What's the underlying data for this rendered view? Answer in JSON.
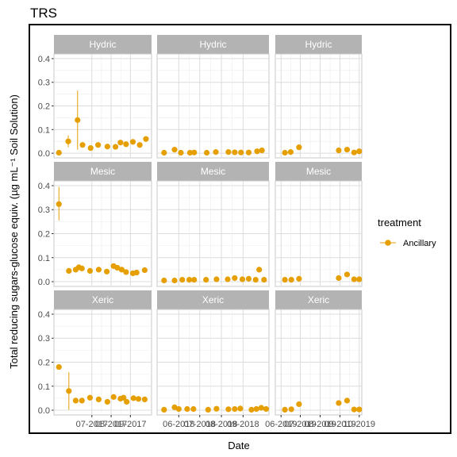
{
  "chart_data": {
    "type": "scatter",
    "title": "TRS",
    "xlabel": "Date",
    "ylabel": "Total reducing sugars-glucose equiv. (µg mL⁻¹ Soil Solution)",
    "ylim": [
      0,
      0.4
    ],
    "yticks": [
      "0.0",
      "0.1",
      "0.2",
      "0.3",
      "0.4"
    ],
    "ytick_values": [
      0,
      0.1,
      0.2,
      0.3,
      0.4
    ],
    "rows": [
      "Hydric",
      "Mesic",
      "Xeric"
    ],
    "legend": {
      "title": "treatment",
      "entries": [
        "Ancillary"
      ],
      "placement": "right"
    },
    "grid": true,
    "color": "#E69F00",
    "columns": [
      {
        "xlim": [
          "2017-05-01",
          "2017-10-05"
        ],
        "xticks": [
          "07-2017",
          "08-2017",
          "09-2017"
        ],
        "xtick_dates": [
          "2017-07-01",
          "2017-08-01",
          "2017-09-01"
        ],
        "panels": [
          {
            "row": "Hydric",
            "points": [
              {
                "x": "2017-05-09",
                "y": 0.002
              },
              {
                "x": "2017-05-24",
                "y": 0.05,
                "lo": 0.025,
                "hi": 0.075
              },
              {
                "x": "2017-06-08",
                "y": 0.14,
                "lo": 0.015,
                "hi": 0.265
              },
              {
                "x": "2017-06-16",
                "y": 0.035
              },
              {
                "x": "2017-06-29",
                "y": 0.022
              },
              {
                "x": "2017-07-11",
                "y": 0.035
              },
              {
                "x": "2017-07-26",
                "y": 0.028
              },
              {
                "x": "2017-08-08",
                "y": 0.027
              },
              {
                "x": "2017-08-16",
                "y": 0.045
              },
              {
                "x": "2017-08-25",
                "y": 0.038
              },
              {
                "x": "2017-09-05",
                "y": 0.048
              },
              {
                "x": "2017-09-16",
                "y": 0.035
              },
              {
                "x": "2017-09-26",
                "y": 0.06
              }
            ]
          },
          {
            "row": "Mesic",
            "points": [
              {
                "x": "2017-05-09",
                "y": 0.323,
                "lo": 0.255,
                "hi": 0.395
              },
              {
                "x": "2017-05-25",
                "y": 0.045
              },
              {
                "x": "2017-06-05",
                "y": 0.05
              },
              {
                "x": "2017-06-10",
                "y": 0.06
              },
              {
                "x": "2017-06-15",
                "y": 0.055
              },
              {
                "x": "2017-06-28",
                "y": 0.045
              },
              {
                "x": "2017-07-12",
                "y": 0.05
              },
              {
                "x": "2017-07-25",
                "y": 0.042
              },
              {
                "x": "2017-08-05",
                "y": 0.065
              },
              {
                "x": "2017-08-11",
                "y": 0.058
              },
              {
                "x": "2017-08-18",
                "y": 0.05
              },
              {
                "x": "2017-08-25",
                "y": 0.04
              },
              {
                "x": "2017-09-05",
                "y": 0.035
              },
              {
                "x": "2017-09-11",
                "y": 0.038
              },
              {
                "x": "2017-09-24",
                "y": 0.048
              }
            ]
          },
          {
            "row": "Xeric",
            "points": [
              {
                "x": "2017-05-09",
                "y": 0.18
              },
              {
                "x": "2017-05-25",
                "y": 0.08,
                "lo": 0.002,
                "hi": 0.158
              },
              {
                "x": "2017-06-05",
                "y": 0.04
              },
              {
                "x": "2017-06-15",
                "y": 0.04
              },
              {
                "x": "2017-06-28",
                "y": 0.052
              },
              {
                "x": "2017-07-12",
                "y": 0.045
              },
              {
                "x": "2017-07-26",
                "y": 0.035
              },
              {
                "x": "2017-08-05",
                "y": 0.055
              },
              {
                "x": "2017-08-16",
                "y": 0.048
              },
              {
                "x": "2017-08-21",
                "y": 0.052
              },
              {
                "x": "2017-08-26",
                "y": 0.035
              },
              {
                "x": "2017-09-06",
                "y": 0.05
              },
              {
                "x": "2017-09-14",
                "y": 0.047
              },
              {
                "x": "2017-09-24",
                "y": 0.045
              }
            ]
          }
        ]
      },
      {
        "xlim": [
          "2018-05-01",
          "2018-10-08"
        ],
        "xticks": [
          "06-2018",
          "07-2018",
          "08-2018",
          "09-2018"
        ],
        "xtick_dates": [
          "2018-06-01",
          "2018-07-01",
          "2018-08-01",
          "2018-09-01"
        ],
        "panels": [
          {
            "row": "Hydric",
            "points": [
              {
                "x": "2018-05-11",
                "y": 0.002
              },
              {
                "x": "2018-05-26",
                "y": 0.015,
                "lo": 0.003,
                "hi": 0.027
              },
              {
                "x": "2018-06-04",
                "y": 0.002
              },
              {
                "x": "2018-06-17",
                "y": 0.002
              },
              {
                "x": "2018-06-23",
                "y": 0.003
              },
              {
                "x": "2018-07-11",
                "y": 0.002
              },
              {
                "x": "2018-07-24",
                "y": 0.005
              },
              {
                "x": "2018-08-11",
                "y": 0.005
              },
              {
                "x": "2018-08-20",
                "y": 0.004
              },
              {
                "x": "2018-08-29",
                "y": 0.003
              },
              {
                "x": "2018-09-09",
                "y": 0.003
              },
              {
                "x": "2018-09-21",
                "y": 0.008
              },
              {
                "x": "2018-09-28",
                "y": 0.012
              }
            ]
          },
          {
            "row": "Mesic",
            "points": [
              {
                "x": "2018-05-11",
                "y": 0.005
              },
              {
                "x": "2018-05-26",
                "y": 0.005
              },
              {
                "x": "2018-06-06",
                "y": 0.008
              },
              {
                "x": "2018-06-16",
                "y": 0.008
              },
              {
                "x": "2018-06-23",
                "y": 0.008
              },
              {
                "x": "2018-07-10",
                "y": 0.008
              },
              {
                "x": "2018-07-25",
                "y": 0.01
              },
              {
                "x": "2018-08-10",
                "y": 0.01
              },
              {
                "x": "2018-08-20",
                "y": 0.015
              },
              {
                "x": "2018-08-31",
                "y": 0.01
              },
              {
                "x": "2018-09-09",
                "y": 0.012
              },
              {
                "x": "2018-09-19",
                "y": 0.008
              },
              {
                "x": "2018-09-24",
                "y": 0.05
              },
              {
                "x": "2018-10-01",
                "y": 0.008
              }
            ]
          },
          {
            "row": "Xeric",
            "points": [
              {
                "x": "2018-05-11",
                "y": 0.002
              },
              {
                "x": "2018-05-26",
                "y": 0.012
              },
              {
                "x": "2018-06-01",
                "y": 0.005
              },
              {
                "x": "2018-06-13",
                "y": 0.005
              },
              {
                "x": "2018-06-22",
                "y": 0.005
              },
              {
                "x": "2018-07-13",
                "y": 0.002
              },
              {
                "x": "2018-07-25",
                "y": 0.006
              },
              {
                "x": "2018-08-11",
                "y": 0.004
              },
              {
                "x": "2018-08-20",
                "y": 0.005
              },
              {
                "x": "2018-08-28",
                "y": 0.007
              },
              {
                "x": "2018-09-13",
                "y": 0.002
              },
              {
                "x": "2018-09-20",
                "y": 0.005
              },
              {
                "x": "2018-09-27",
                "y": 0.01
              },
              {
                "x": "2018-10-04",
                "y": 0.005
              }
            ]
          }
        ]
      },
      {
        "xlim": [
          "2019-05-23",
          "2019-10-05"
        ],
        "xticks": [
          "06-2019",
          "07-2019",
          "08-2019",
          "09-2019",
          "10-2019"
        ],
        "xtick_dates": [
          "2019-06-01",
          "2019-07-01",
          "2019-08-01",
          "2019-09-01",
          "2019-10-01"
        ],
        "panels": [
          {
            "row": "Hydric",
            "points": [
              {
                "x": "2019-06-07",
                "y": 0.002
              },
              {
                "x": "2019-06-16",
                "y": 0.005
              },
              {
                "x": "2019-06-29",
                "y": 0.025
              },
              {
                "x": "2019-08-30",
                "y": 0.012
              },
              {
                "x": "2019-09-12",
                "y": 0.015
              },
              {
                "x": "2019-09-23",
                "y": 0.003
              },
              {
                "x": "2019-10-01",
                "y": 0.008
              }
            ]
          },
          {
            "row": "Mesic",
            "points": [
              {
                "x": "2019-06-07",
                "y": 0.008
              },
              {
                "x": "2019-06-17",
                "y": 0.008
              },
              {
                "x": "2019-06-29",
                "y": 0.012
              },
              {
                "x": "2019-08-30",
                "y": 0.015
              },
              {
                "x": "2019-09-12",
                "y": 0.03
              },
              {
                "x": "2019-09-23",
                "y": 0.01
              },
              {
                "x": "2019-10-01",
                "y": 0.01
              }
            ]
          },
          {
            "row": "Xeric",
            "points": [
              {
                "x": "2019-06-07",
                "y": 0.002
              },
              {
                "x": "2019-06-17",
                "y": 0.004
              },
              {
                "x": "2019-06-29",
                "y": 0.025
              },
              {
                "x": "2019-08-30",
                "y": 0.03
              },
              {
                "x": "2019-09-12",
                "y": 0.04
              },
              {
                "x": "2019-09-23",
                "y": 0.003
              },
              {
                "x": "2019-10-01",
                "y": 0.003
              }
            ]
          }
        ]
      }
    ]
  }
}
